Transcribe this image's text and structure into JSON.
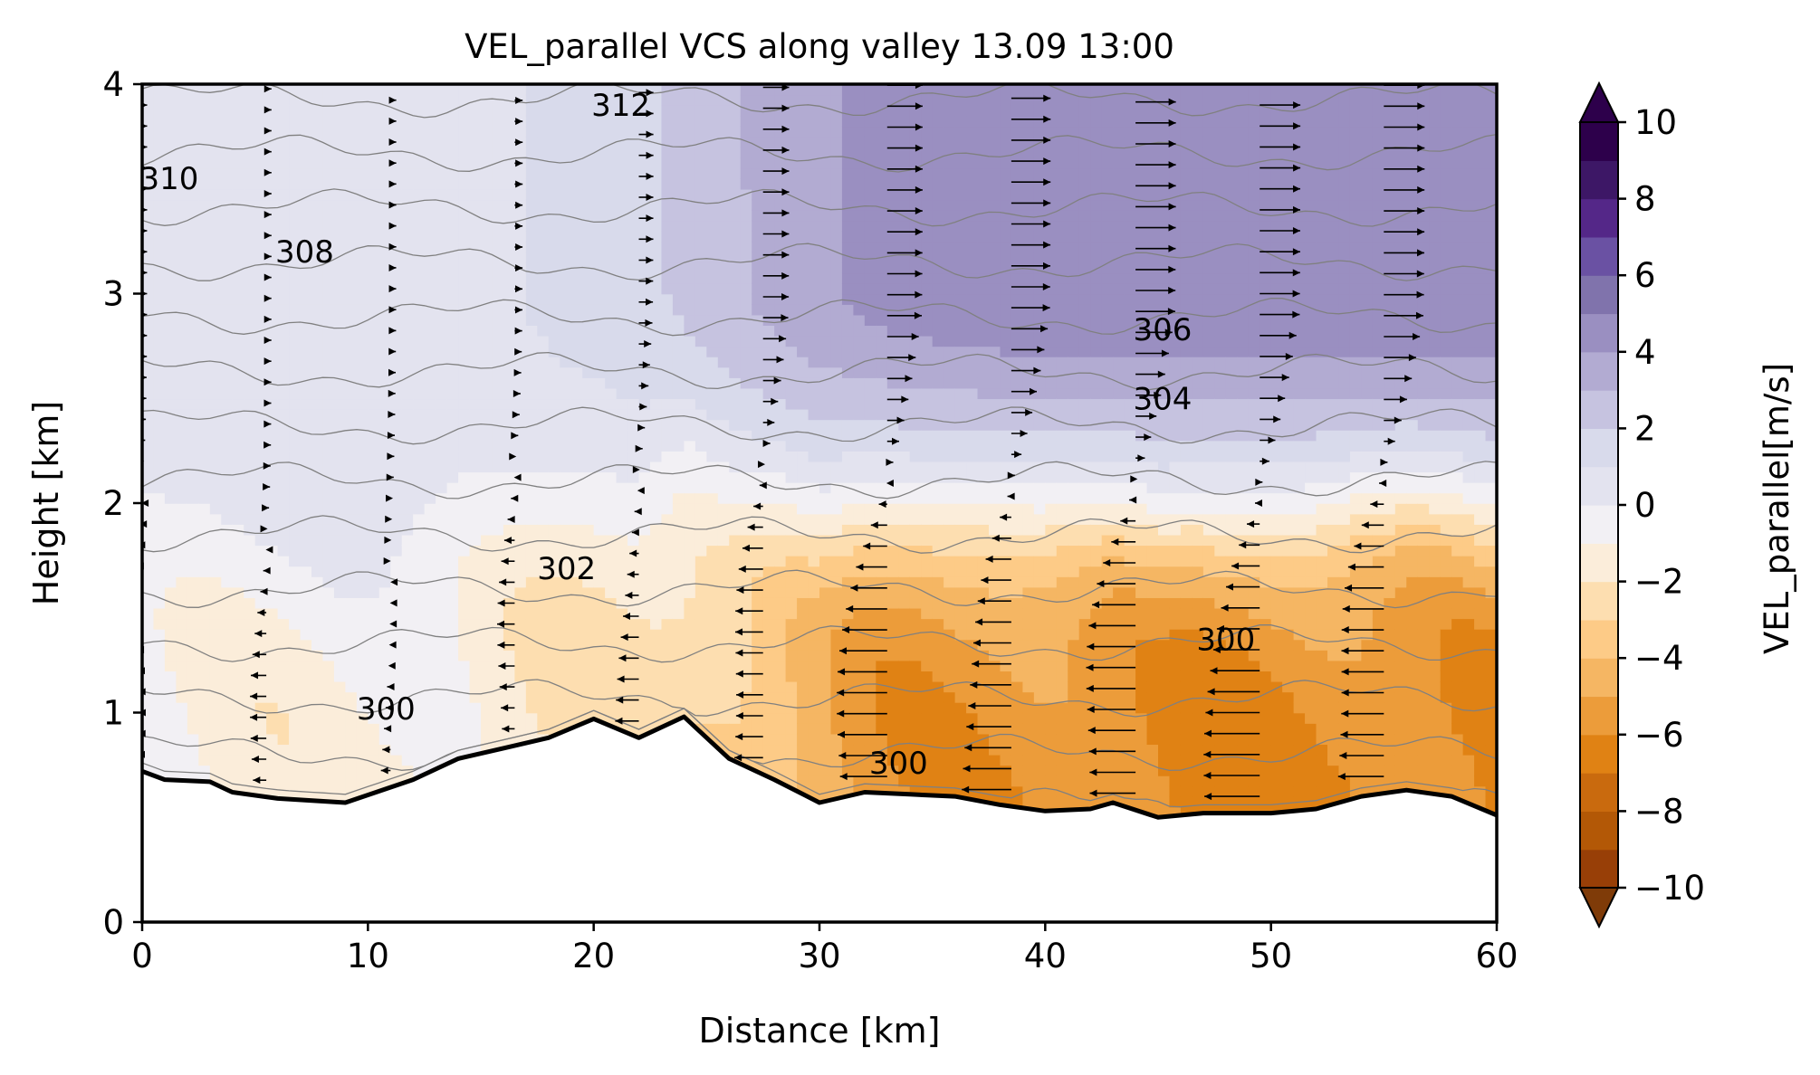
{
  "chart_data": {
    "type": "heatmap",
    "title": "VEL_parallel VCS along valley 13.09 13:00",
    "xlabel": "Distance [km]",
    "ylabel": "Height [km]",
    "xlim": [
      0,
      60
    ],
    "ylim": [
      0,
      4
    ],
    "xticks": [
      0,
      10,
      20,
      30,
      40,
      50,
      60
    ],
    "yticks": [
      0,
      1,
      2,
      3,
      4
    ],
    "grid": false,
    "colorbar": {
      "label": "VEL_parallel[m/s]",
      "range": [
        -10,
        10
      ],
      "step": 1,
      "ticks": [
        -10,
        -8,
        -6,
        -4,
        -2,
        0,
        2,
        4,
        6,
        8,
        10
      ],
      "tick_labels": [
        "−10",
        "−8",
        "−6",
        "−4",
        "−2",
        "0",
        "2",
        "4",
        "6",
        "8",
        "10"
      ],
      "colors": [
        "#7f3b08",
        "#983f07",
        "#b35806",
        "#c96a0e",
        "#e08214",
        "#ec9c3a",
        "#f5b663",
        "#fdcb87",
        "#fddeb0",
        "#fbedda",
        "#f2f0f4",
        "#e3e3ef",
        "#d8daeb",
        "#c6c3e0",
        "#b2abd2",
        "#9a8fc1",
        "#8073ac",
        "#6a51a3",
        "#542788",
        "#3d1766",
        "#2d004b"
      ],
      "extend": "both"
    },
    "terrain_km": {
      "x": [
        0,
        1,
        3,
        4,
        6,
        9,
        12,
        14,
        16,
        18,
        20,
        22,
        24,
        26,
        28,
        30,
        32,
        34,
        36,
        38,
        40,
        42,
        43,
        45,
        47,
        50,
        52,
        54,
        56,
        58,
        60
      ],
      "y": [
        0.72,
        0.68,
        0.67,
        0.62,
        0.59,
        0.57,
        0.68,
        0.78,
        0.83,
        0.88,
        0.97,
        0.88,
        0.98,
        0.78,
        0.68,
        0.57,
        0.62,
        0.61,
        0.6,
        0.56,
        0.53,
        0.54,
        0.57,
        0.5,
        0.52,
        0.52,
        0.54,
        0.6,
        0.63,
        0.6,
        0.51
      ]
    },
    "theta_contours_K": {
      "levels": [
        300,
        301,
        302,
        303,
        304,
        305,
        306,
        307,
        308,
        309,
        310,
        311,
        312,
        313
      ],
      "labels": [
        {
          "text": "310",
          "x": 1.2,
          "y": 3.55
        },
        {
          "text": "308",
          "x": 7.2,
          "y": 3.2
        },
        {
          "text": "312",
          "x": 21.2,
          "y": 3.9
        },
        {
          "text": "306",
          "x": 45.2,
          "y": 2.83
        },
        {
          "text": "304",
          "x": 45.2,
          "y": 2.5
        },
        {
          "text": "302",
          "x": 18.8,
          "y": 1.69
        },
        {
          "text": "300",
          "x": 48.0,
          "y": 1.35
        },
        {
          "text": "300",
          "x": 10.8,
          "y": 1.02
        },
        {
          "text": "300",
          "x": 33.5,
          "y": 0.76
        }
      ]
    },
    "wind_columns_km": [
      0,
      5.5,
      11,
      16.5,
      22,
      27.5,
      33,
      38.5,
      44,
      49.5,
      55
    ]
  }
}
